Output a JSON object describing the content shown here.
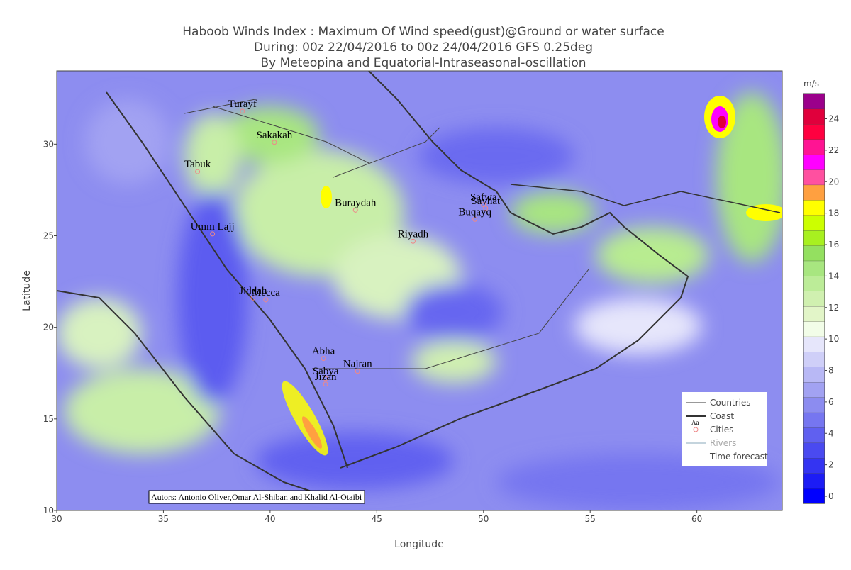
{
  "title": [
    "Haboob Winds Index : Maximum Of Wind speed(gust)@Ground or water surface",
    "During: 00z 22/04/2016 to 00z 24/04/2016 GFS 0.25deg",
    "By  Meteopina and  Equatorial-Intraseasonal-oscillation"
  ],
  "xaxis": {
    "title": "Longitude",
    "range": [
      30,
      64
    ],
    "ticks": [
      30,
      35,
      40,
      45,
      50,
      55,
      60
    ]
  },
  "yaxis": {
    "title": "Latitude",
    "range": [
      10,
      34
    ],
    "ticks": [
      10,
      15,
      20,
      25,
      30
    ]
  },
  "colorbar": {
    "title": "m/s",
    "range": [
      -0.45,
      25.6
    ],
    "ticks": [
      0,
      2,
      4,
      6,
      8,
      10,
      12,
      14,
      16,
      18,
      20,
      22,
      24
    ],
    "colors": [
      "#0000ff",
      "#1c1cf5",
      "#3434f2",
      "#4a4af0",
      "#6060f0",
      "#7676f0",
      "#8c8cf0",
      "#a2a2f2",
      "#b8b8f5",
      "#cfcff8",
      "#e6e6fb",
      "#f2fde8",
      "#e2f5c8",
      "#d0f0b0",
      "#bcec98",
      "#a8e680",
      "#94e060",
      "#a8f020",
      "#ccff00",
      "#ffff00",
      "#ffa040",
      "#ff50a0",
      "#ff00ff",
      "#ff1493",
      "#ff0040",
      "#e0003c",
      "#9b008b"
    ]
  },
  "cities": [
    {
      "name": "Turayf",
      "lon": 38.7,
      "lat": 31.8
    },
    {
      "name": "Sakakah",
      "lon": 40.2,
      "lat": 30.1
    },
    {
      "name": "Tabuk",
      "lon": 36.6,
      "lat": 28.5
    },
    {
      "name": "Buraydah",
      "lon": 44.0,
      "lat": 26.4
    },
    {
      "name": "Umm Lajj",
      "lon": 37.3,
      "lat": 25.1
    },
    {
      "name": "Riyadh",
      "lon": 46.7,
      "lat": 24.7
    },
    {
      "name": "Jiddah",
      "lon": 39.2,
      "lat": 21.6
    },
    {
      "name": "Mecca",
      "lon": 39.8,
      "lat": 21.5
    },
    {
      "name": "Abha",
      "lon": 42.5,
      "lat": 18.3
    },
    {
      "name": "Najran",
      "lon": 44.1,
      "lat": 17.6
    },
    {
      "name": "Sabya",
      "lon": 42.6,
      "lat": 17.2
    },
    {
      "name": "Jizan",
      "lon": 42.6,
      "lat": 16.9
    },
    {
      "name": "Safwa",
      "lon": 50.0,
      "lat": 26.7
    },
    {
      "name": "Sayhat",
      "lon": 50.1,
      "lat": 26.5
    },
    {
      "name": "Buqayq",
      "lon": 49.6,
      "lat": 25.9
    }
  ],
  "legend": [
    "Countries",
    "Coast",
    "Cities",
    "Rivers",
    "Time forecast"
  ],
  "legend_icon": "Aa",
  "note": "Autors: Antonio Oliver,Omar Al-Shiban and Khalid Al-Otaibi"
}
